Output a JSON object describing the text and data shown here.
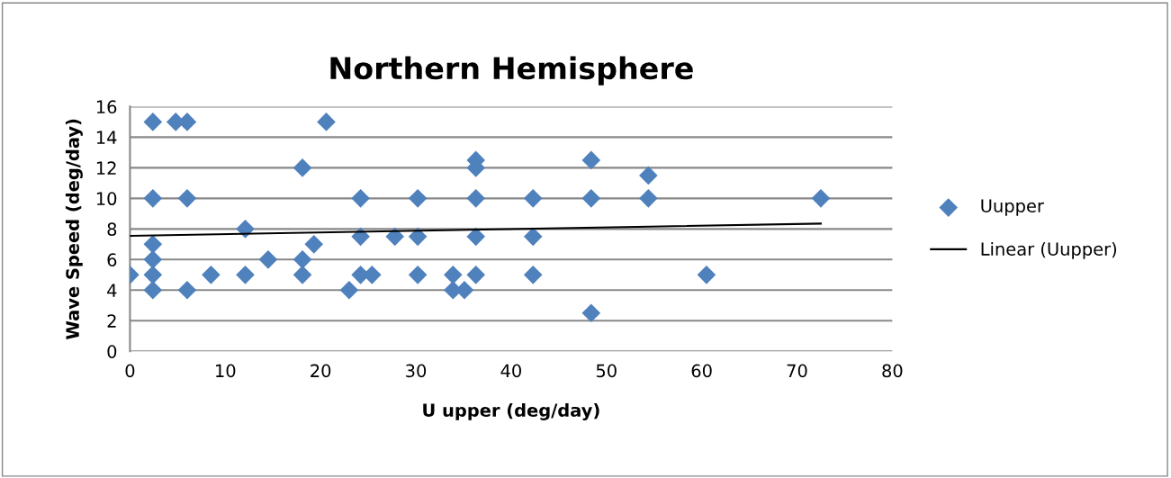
{
  "chart_data": {
    "type": "scatter",
    "title": "Northern Hemisphere",
    "xlabel": "U upper (deg/day)",
    "ylabel": "Wave Speed (deg/day)",
    "xlim": [
      0,
      80
    ],
    "xticks": [
      0,
      10,
      20,
      30,
      40,
      50,
      60,
      70,
      80
    ],
    "ylim": [
      0,
      16
    ],
    "yticks": [
      0,
      2,
      4,
      6,
      8,
      10,
      12,
      14,
      16
    ],
    "grid": "y",
    "legend": "right",
    "series": [
      {
        "name": "Uupper",
        "marker": "diamond",
        "color": "#4f81bd",
        "x": [
          0,
          2.4,
          2.4,
          2.4,
          2.4,
          2.4,
          2.4,
          4.8,
          6,
          6,
          6,
          8.5,
          12.1,
          12.1,
          14.5,
          18.1,
          18.1,
          18.1,
          19.3,
          20.6,
          23,
          24.2,
          24.2,
          24.2,
          25.4,
          27.8,
          30.2,
          30.2,
          30.2,
          33.9,
          33.9,
          35.1,
          36.3,
          36.3,
          36.3,
          36.3,
          36.3,
          42.3,
          42.3,
          42.3,
          48.4,
          48.4,
          48.4,
          54.4,
          54.4,
          60.5,
          72.5
        ],
        "values": [
          5,
          15,
          10,
          7,
          6,
          5,
          4,
          15,
          15,
          10,
          4,
          5,
          8,
          5,
          6,
          12,
          6,
          5,
          7,
          15,
          4,
          10,
          7.5,
          5,
          5,
          7.5,
          10,
          7.5,
          5,
          5,
          4,
          4,
          12.5,
          12,
          10,
          7.5,
          5,
          10,
          7.5,
          5,
          12.5,
          10,
          2.5,
          11.5,
          10,
          5,
          10
        ]
      },
      {
        "name": "Linear (Uupper)",
        "type": "line",
        "marker": "none",
        "color": "#000000",
        "x": [
          0,
          72.5
        ],
        "values": [
          7.55,
          8.35
        ]
      }
    ]
  }
}
